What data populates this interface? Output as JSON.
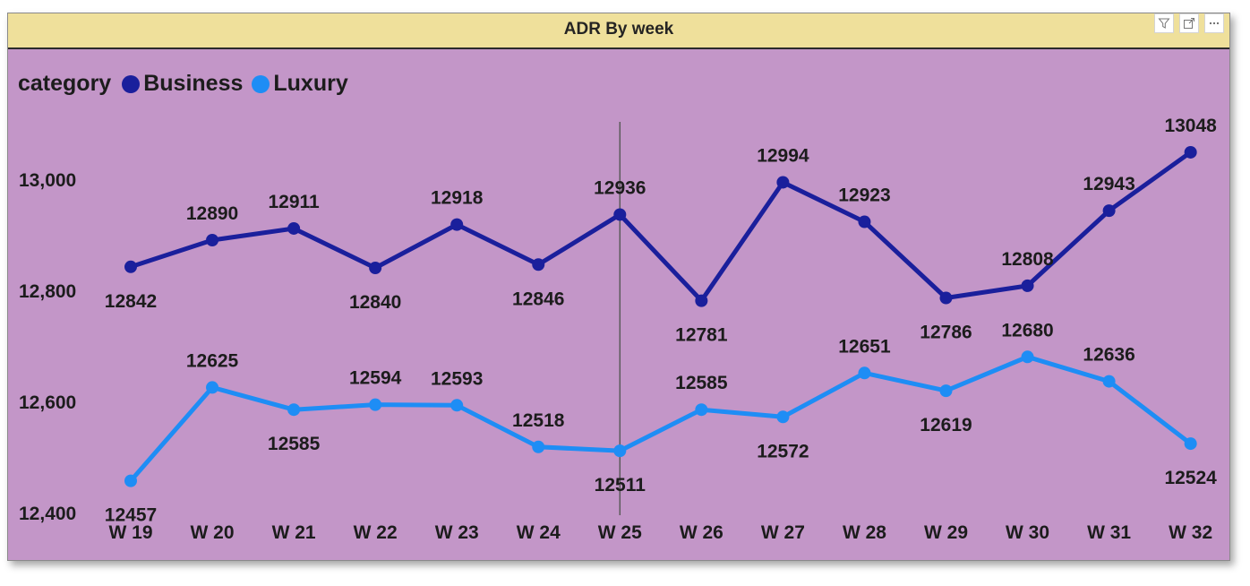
{
  "chart_data": {
    "type": "line",
    "title": "ADR By week",
    "legend_title": "category",
    "legend_position": "top-left",
    "categories": [
      "W 19",
      "W 20",
      "W 21",
      "W 22",
      "W 23",
      "W 24",
      "W 25",
      "W 26",
      "W 27",
      "W 28",
      "W 29",
      "W 30",
      "W 31",
      "W 32"
    ],
    "series": [
      {
        "name": "Business",
        "color": "#1a1f9c",
        "values": [
          12842,
          12890,
          12911,
          12840,
          12918,
          12846,
          12936,
          12781,
          12994,
          12923,
          12786,
          12808,
          12943,
          13048
        ],
        "label_below": [
          true,
          false,
          false,
          true,
          false,
          true,
          false,
          true,
          false,
          false,
          true,
          false,
          false,
          false
        ]
      },
      {
        "name": "Luxury",
        "color": "#1e8df5",
        "values": [
          12457,
          12625,
          12585,
          12594,
          12593,
          12518,
          12511,
          12585,
          12572,
          12651,
          12619,
          12680,
          12636,
          12524
        ],
        "label_below": [
          true,
          false,
          true,
          false,
          false,
          false,
          true,
          false,
          true,
          false,
          true,
          false,
          false,
          true
        ]
      }
    ],
    "y_ticks": [
      12400,
      12600,
      12800,
      13000
    ],
    "y_tick_labels": [
      "12,400",
      "12,600",
      "12,800",
      "13,000"
    ],
    "ylim": [
      12400,
      13048
    ],
    "grid": false,
    "reference_line_category": "W 25"
  },
  "header_icons": [
    "filter-icon",
    "focus-mode-icon",
    "more-options-icon"
  ]
}
